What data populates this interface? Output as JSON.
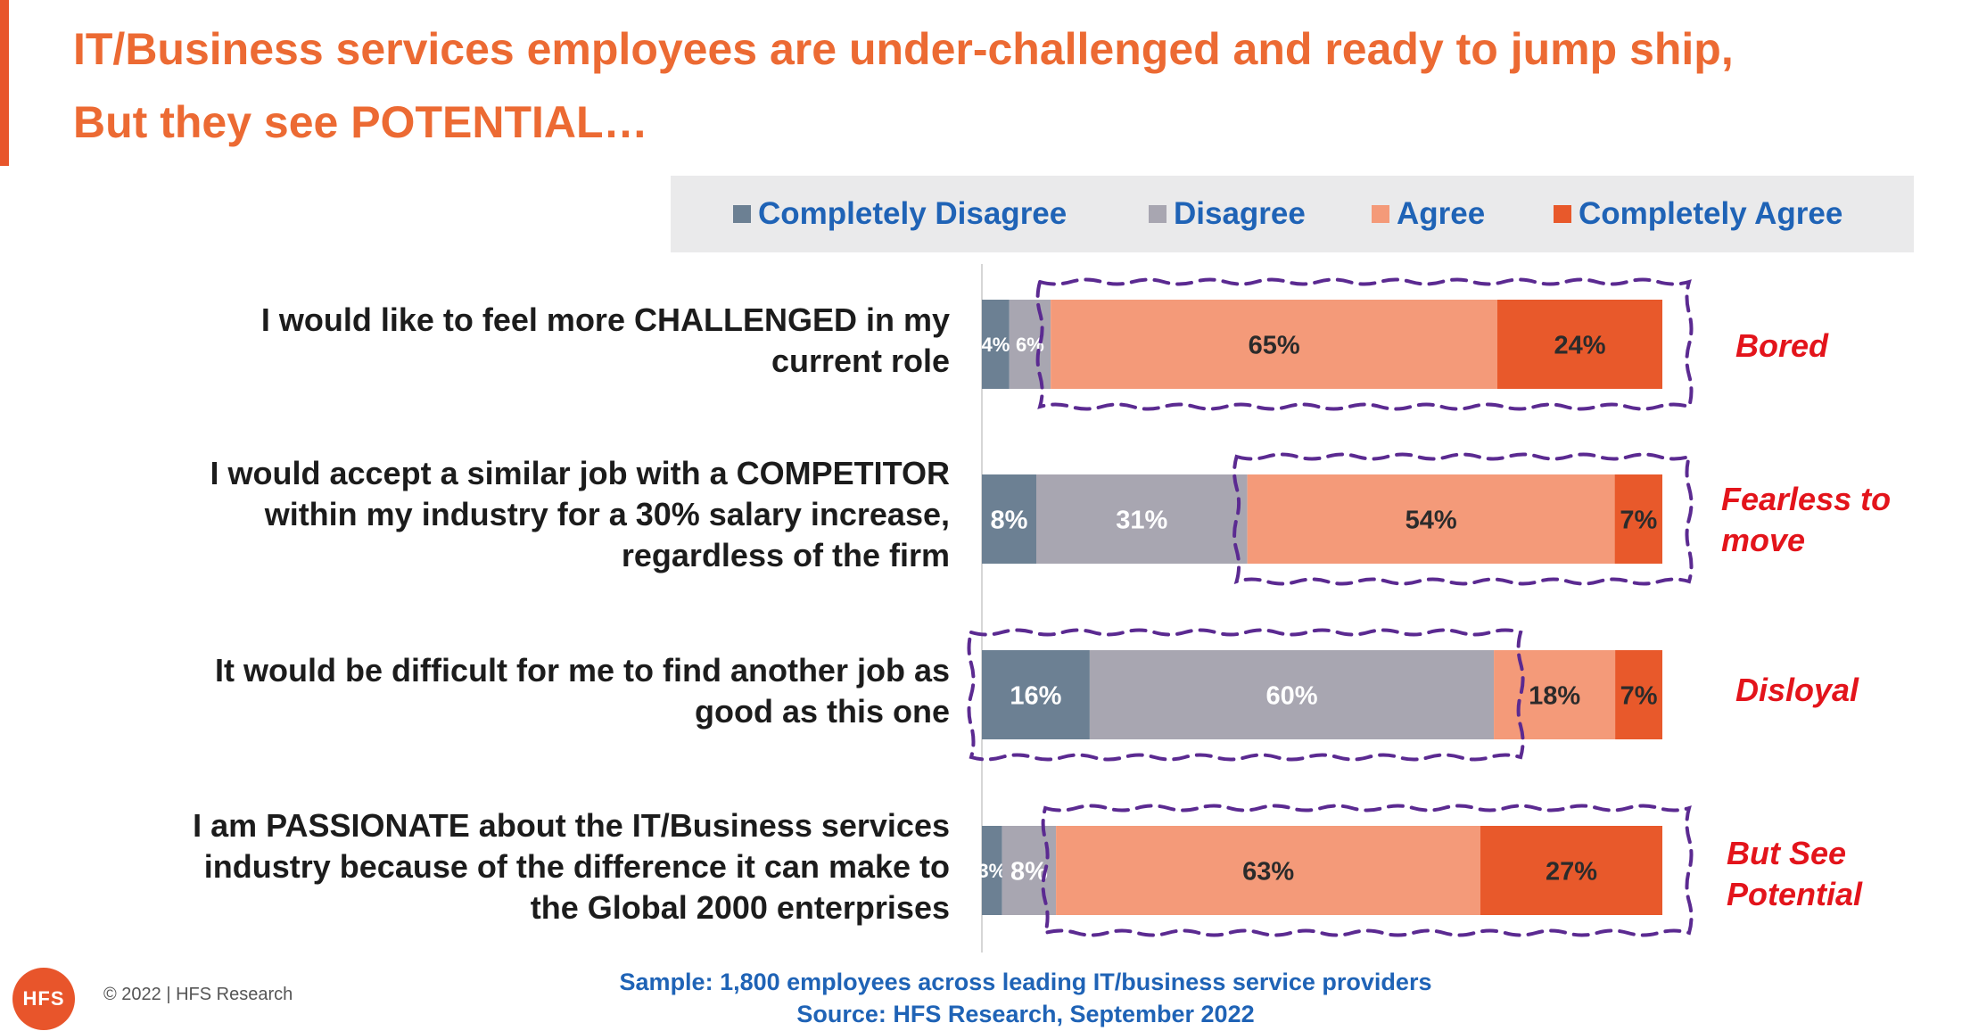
{
  "slide": {
    "title_line1": "IT/Business services employees are under-challenged and ready to jump ship,",
    "title_line2": "But they see POTENTIAL…",
    "accent_color": "#e8552b",
    "title_color": "#ec6a33"
  },
  "chart_data": {
    "type": "bar",
    "orientation": "horizontal",
    "stacked": true,
    "percent": true,
    "legend_position": "top-right",
    "categories": [
      [
        "I would like to feel more CHALLENGED in my",
        "current role"
      ],
      [
        "I would accept a similar job with a COMPETITOR",
        "within my industry for a 30% salary increase,",
        "regardless of the firm"
      ],
      [
        "It would be difficult for me to find another job as",
        "good as this one"
      ],
      [
        "I am PASSIONATE about the IT/Business services",
        "industry because of the difference it can make to",
        "the Global 2000 enterprises"
      ]
    ],
    "series": [
      {
        "name": "Completely Disagree",
        "color": "#6c8093",
        "values": [
          4,
          8,
          16,
          3
        ],
        "labels": [
          "4%",
          "8%",
          "16%",
          "3%"
        ]
      },
      {
        "name": "Disagree",
        "color": "#a8a6b1",
        "values": [
          6,
          31,
          60,
          8
        ],
        "labels": [
          "6%",
          "31%",
          "60%",
          "8%"
        ]
      },
      {
        "name": "Agree",
        "color": "#f49a79",
        "values": [
          65,
          54,
          18,
          63
        ],
        "labels": [
          "65%",
          "54%",
          "18%",
          "63%"
        ]
      },
      {
        "name": "Completely Agree",
        "color": "#e8592b",
        "values": [
          24,
          7,
          7,
          27
        ],
        "labels": [
          "24%",
          "7%",
          "7%",
          "27%"
        ]
      }
    ],
    "highlights": [
      {
        "row": 0,
        "from_series": 2,
        "to_series": 3,
        "color": "#5b2a91"
      },
      {
        "row": 1,
        "from_series": 2,
        "to_series": 3,
        "color": "#5b2a91"
      },
      {
        "row": 2,
        "from_series": 0,
        "to_series": 1,
        "color": "#5b2a91"
      },
      {
        "row": 3,
        "from_series": 2,
        "to_series": 3,
        "color": "#5b2a91"
      }
    ],
    "annotations": [
      [
        "Bored"
      ],
      [
        "Fearless to",
        "move"
      ],
      [
        "Disloyal"
      ],
      [
        "But See",
        "Potential"
      ]
    ]
  },
  "footer": {
    "sample": "Sample: 1,800 employees across leading IT/business service providers",
    "source": "Source: HFS Research, September 2022",
    "logo_text": "HFS",
    "copyright": "© 2022 | HFS Research"
  }
}
